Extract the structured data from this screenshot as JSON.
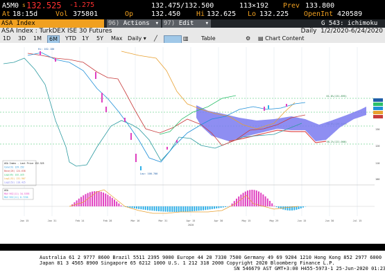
{
  "quote": {
    "ticker": "A5M0",
    "last_prefix": "s",
    "last": "132.525",
    "change": "-1.275",
    "bid_ask": "132.475/132.500",
    "size": "113×192",
    "prev_label": "Prev",
    "prev": "133.800",
    "at_label": "At",
    "time": "18:15d",
    "vol_label": "Vol",
    "vol": "375801",
    "op_label": "Op",
    "op": "132.450",
    "hi_label": "Hi",
    "hi": "132.625",
    "lo_label": "Lo",
    "lo": "132.225",
    "openint_label": "OpenInt",
    "openint": "420589"
  },
  "func_bar": {
    "security": "ASA Index",
    "menu_96": "96)",
    "actions": "Actions",
    "menu_97": "97)",
    "edit": "Edit",
    "function": "G 543: ichimoku"
  },
  "toolbar": {
    "title": "ASA Index : TurkDEX ISE 30 Futures",
    "periodicity": "Daily",
    "date_range": "1/2/2020-6/24/2020",
    "periods": [
      "1D",
      "3D",
      "1M",
      "6M",
      "YTD",
      "1Y",
      "5Y",
      "Max"
    ],
    "active_period": "6M",
    "daily_select": "Daily",
    "table": "Table",
    "chart_content": "Chart Content"
  },
  "chart_data": {
    "type": "line",
    "x": [
      "Jan 15",
      "Jan 31",
      "Feb 14",
      "Feb 28",
      "Mar 16",
      "Mar 31",
      "Apr 15",
      "Apr 30",
      "May 15",
      "May 29",
      "Jun 15",
      "Jun 30",
      "Jul 15"
    ],
    "x_axis_year": "2020",
    "price_labels": {
      "high": "Hi: 162.100",
      "low": "Low: 100.700"
    },
    "series": [
      {
        "name": "ASA Index - Last Price",
        "value": "132.525",
        "color": "#111111"
      },
      {
        "name": "Conv(9)",
        "value": "129.152",
        "color": "#1f8fd8"
      },
      {
        "name": "Base(26)",
        "value": "124.638",
        "color": "#c83c3c"
      },
      {
        "name": "Lag(26)",
        "value": "132.325",
        "color": "#2bbf6a"
      },
      {
        "name": "Lag1(52)",
        "value": "131.907",
        "color": "#e8a030"
      },
      {
        "name": "Lag2(52)",
        "value": "118.425",
        "color": "#7a7af0"
      }
    ],
    "fib_labels": [
      "61.8%(131.895)",
      "50.0%(126.444)",
      "38.2%(121.000)"
    ],
    "right_axis_ticks": [
      "130",
      "120",
      "110",
      "100"
    ],
    "osc_legend": [
      {
        "name": "ASA",
        "value": "",
        "color": ""
      },
      {
        "name": "MAV RSI(11)",
        "value": "34.5393",
        "color": "#e040c0"
      },
      {
        "name": "MAV RSI(11)",
        "value": "8.7256",
        "color": "#30b0e8"
      }
    ]
  },
  "footer": {
    "line1": "Australia 61 2 9777 8600  Brazil 5511 2395 9000  Europe 44 20 7330 7500  Germany 49 69 9204 1210  Hong Kong 852 2977 6000",
    "line2": "Japan 81 3 4565 8900          Singapore 65 6212 1000          U.S. 1 212 318 2000          Copyright 2020 Bloomberg Finance L.P.",
    "line3": "SN 546679 AST  GMT+3:00 H455-5973-1 25-Jun-2020 01:23:19"
  }
}
